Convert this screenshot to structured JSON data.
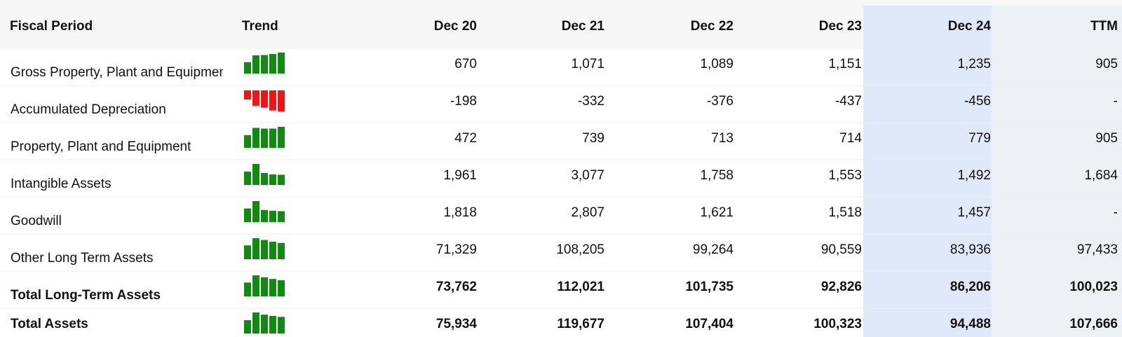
{
  "header": {
    "columns": [
      "Fiscal Period",
      "Trend",
      "Dec 20",
      "Dec 21",
      "Dec 22",
      "Dec 23",
      "Dec 24",
      "TTM"
    ]
  },
  "rows": [
    {
      "label": "Gross Property, Plant and Equipment",
      "values": [
        670,
        1071,
        1089,
        1151,
        1235,
        905
      ],
      "value_labels": [
        "670",
        "1,071",
        "1,089",
        "1,151",
        "1,235",
        "905"
      ]
    },
    {
      "label": "Accumulated Depreciation",
      "values": [
        -198,
        -332,
        -376,
        -437,
        -456,
        null
      ],
      "value_labels": [
        "-198",
        "-332",
        "-376",
        "-437",
        "-456",
        "-"
      ]
    },
    {
      "label": "Property, Plant and Equipment",
      "values": [
        472,
        739,
        713,
        714,
        779,
        905
      ],
      "value_labels": [
        "472",
        "739",
        "713",
        "714",
        "779",
        "905"
      ]
    },
    {
      "label": "Intangible Assets",
      "values": [
        1961,
        3077,
        1758,
        1553,
        1492,
        1684
      ],
      "value_labels": [
        "1,961",
        "3,077",
        "1,758",
        "1,553",
        "1,492",
        "1,684"
      ]
    },
    {
      "label": "Goodwill",
      "values": [
        1818,
        2807,
        1621,
        1518,
        1457,
        null
      ],
      "value_labels": [
        "1,818",
        "2,807",
        "1,621",
        "1,518",
        "1,457",
        "-"
      ]
    },
    {
      "label": "Other Long Term Assets",
      "values": [
        71329,
        108205,
        99264,
        90559,
        83936,
        97433
      ],
      "value_labels": [
        "71,329",
        "108,205",
        "99,264",
        "90,559",
        "83,936",
        "97,433"
      ]
    },
    {
      "label": "Total Long-Term Assets",
      "bold": true,
      "values": [
        73762,
        112021,
        101735,
        92826,
        86206,
        100023
      ],
      "value_labels": [
        "73,762",
        "112,021",
        "101,735",
        "92,826",
        "86,206",
        "100,023"
      ]
    },
    {
      "label": "Total Assets",
      "bold": true,
      "values": [
        75934,
        119677,
        107404,
        100323,
        94488,
        107666
      ],
      "value_labels": [
        "75,934",
        "119,677",
        "107,404",
        "100,323",
        "94,488",
        "107,666"
      ]
    }
  ]
}
